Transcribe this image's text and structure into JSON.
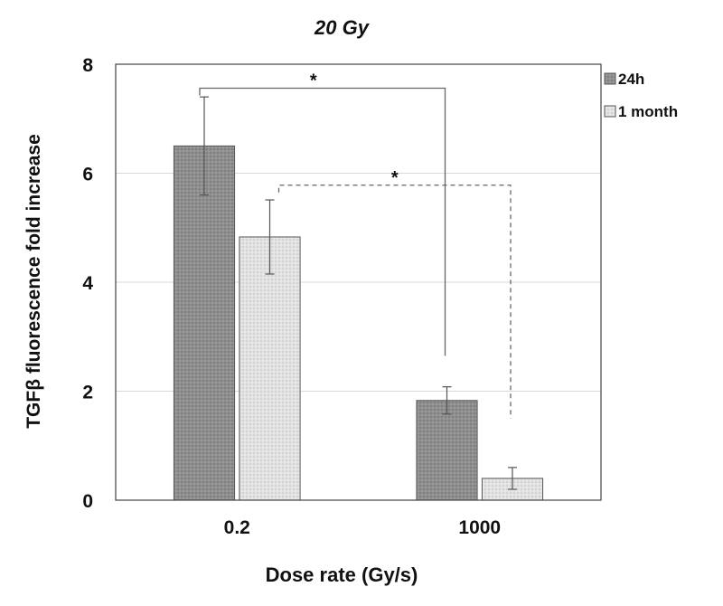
{
  "chart_data": {
    "type": "bar",
    "title": "20 Gy",
    "xlabel": "Dose rate (Gy/s)",
    "ylabel": "TGFβ  fluorescence fold increase",
    "categories": [
      "0.2",
      "1000"
    ],
    "series": [
      {
        "name": "24h",
        "values": [
          6.5,
          1.83
        ],
        "errors": [
          0.9,
          0.25
        ],
        "color": "#8f8f8f"
      },
      {
        "name": "1 month",
        "values": [
          4.83,
          0.4
        ],
        "errors": [
          0.68,
          0.2
        ],
        "color": "#dcdcdc"
      }
    ],
    "ylim": [
      0,
      8
    ],
    "yticks": [
      0,
      2,
      4,
      6,
      8
    ],
    "grid": true,
    "legend_position": "top-right",
    "significance": [
      {
        "label": "*",
        "series": "24h",
        "from": "0.2",
        "to": "1000",
        "style": "solid"
      },
      {
        "label": "*",
        "series": "1 month",
        "from": "0.2",
        "to": "1000",
        "style": "dashed"
      }
    ]
  }
}
